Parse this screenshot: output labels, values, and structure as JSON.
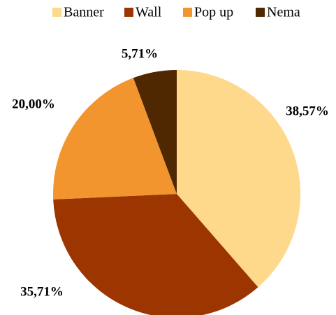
{
  "chart_data": {
    "type": "pie",
    "categories": [
      "Banner",
      "Wall",
      "Pop up",
      "Nema"
    ],
    "values": [
      38.57,
      35.71,
      20.0,
      5.71
    ],
    "value_labels": [
      "38,57%",
      "35,71%",
      "20,00%",
      "5,71%"
    ],
    "colors": [
      "#fed98b",
      "#9c3500",
      "#f3952f",
      "#4f2700"
    ],
    "legend": "top"
  }
}
